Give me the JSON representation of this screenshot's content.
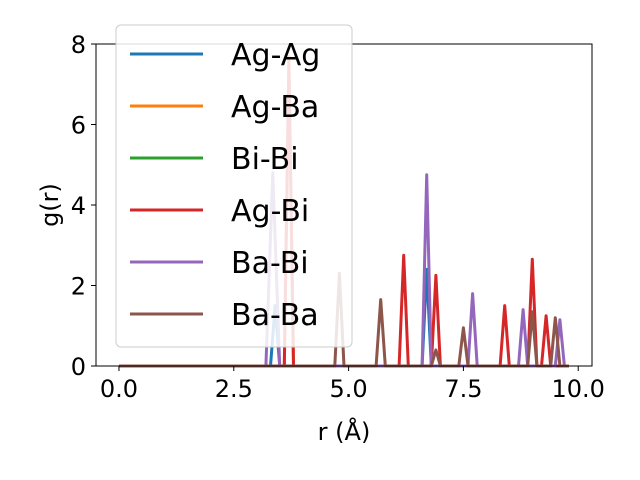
{
  "chart_data": {
    "type": "line",
    "title": "",
    "xlabel": "r (Å)",
    "ylabel": "g(r)",
    "xlim": [
      -0.5,
      10.3
    ],
    "ylim": [
      0,
      8
    ],
    "grid": false,
    "legend_position": "upper-left",
    "x_ticks": [
      0.0,
      2.5,
      5.0,
      7.5,
      10.0
    ],
    "x_tick_labels": [
      "0.0",
      "2.5",
      "5.0",
      "7.5",
      "10.0"
    ],
    "y_ticks": [
      0,
      2,
      4,
      6,
      8
    ],
    "y_tick_labels": [
      "0",
      "2",
      "4",
      "6",
      "8"
    ],
    "series": [
      {
        "name": "Ag-Ag",
        "color": "#1f77b4",
        "x": [
          0,
          3.3,
          3.4,
          3.5,
          6.6,
          6.7,
          6.8,
          9.8
        ],
        "y": [
          0,
          0,
          1.5,
          0,
          0,
          2.4,
          0,
          0
        ]
      },
      {
        "name": "Ag-Ba",
        "color": "#ff7f0e",
        "x": [
          0,
          3.6,
          3.7,
          3.8,
          9.8
        ],
        "y": [
          0,
          0,
          7.7,
          0,
          0
        ]
      },
      {
        "name": "Bi-Bi",
        "color": "#2ca02c",
        "x": [
          0,
          9.8
        ],
        "y": [
          0,
          0
        ]
      },
      {
        "name": "Ag-Bi",
        "color": "#d62728",
        "x": [
          0,
          3.6,
          3.7,
          3.8,
          6.1,
          6.2,
          6.3,
          6.8,
          6.9,
          7.0,
          8.3,
          8.4,
          8.5,
          8.9,
          9.0,
          9.1,
          9.2,
          9.3,
          9.4,
          9.8
        ],
        "y": [
          0,
          0,
          7.6,
          0,
          0,
          2.75,
          0,
          0,
          2.25,
          0,
          0,
          1.5,
          0,
          0,
          2.65,
          0,
          0,
          1.25,
          0,
          0
        ]
      },
      {
        "name": "Ba-Bi",
        "color": "#9467bd",
        "x": [
          0,
          3.2,
          3.35,
          3.5,
          6.6,
          6.7,
          6.8,
          7.6,
          7.7,
          7.8,
          8.7,
          8.8,
          8.9,
          9.5,
          9.6,
          9.7
        ],
        "y": [
          0,
          0,
          4.8,
          0,
          0,
          4.75,
          0,
          0,
          1.8,
          0,
          0,
          1.4,
          0,
          0,
          1.15,
          0
        ]
      },
      {
        "name": "Ba-Ba",
        "color": "#8c564b",
        "x": [
          0,
          4.7,
          4.8,
          4.9,
          5.6,
          5.7,
          5.8,
          6.8,
          6.9,
          7.0,
          7.4,
          7.5,
          7.6,
          8.9,
          9.0,
          9.1,
          9.4,
          9.5,
          9.6,
          9.8
        ],
        "y": [
          0,
          0,
          2.3,
          0,
          0,
          1.65,
          0,
          0,
          0.4,
          0,
          0,
          0.95,
          0,
          0,
          1.35,
          0,
          0,
          1.2,
          0,
          0
        ]
      }
    ]
  }
}
